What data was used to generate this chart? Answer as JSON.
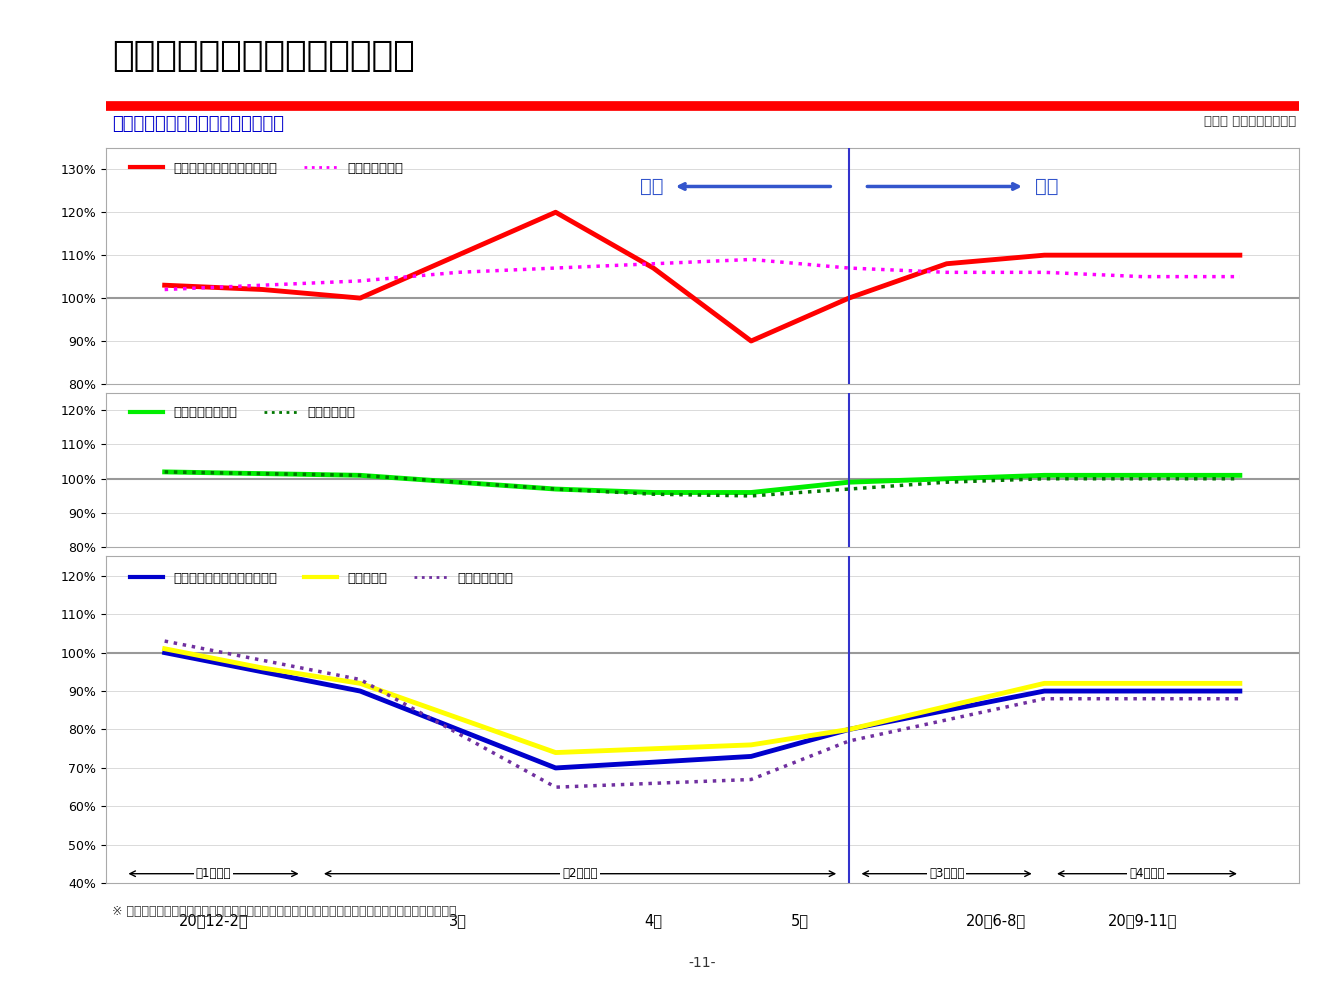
{
  "title": "市場の動きとの比較（前年比）",
  "subtitle": "当社事業別売上高伸長率と市場動向",
  "note": "（注） 数値は近似値です",
  "footer": "※ 市場実績は日本フードサービス協会およびチェーンストアー協会資料、市場予想は当社見込みより",
  "page": "-11-",
  "x_labels": [
    "20年12-2月",
    "3月",
    "4月",
    "5月",
    "20年6-8月",
    "20年9-11月"
  ],
  "vertical_line_x": 3.5,
  "chart1": {
    "ylim": [
      80,
      135
    ],
    "yticks": [
      80,
      90,
      100,
      110,
      120,
      130
    ],
    "series": [
      {
        "label": "当社調理・調味料（家庭用）",
        "color": "#ff0000",
        "linestyle": "solid",
        "linewidth": 3.5
      },
      {
        "label": "スーパー食料品",
        "color": "#ff00ff",
        "linestyle": "dotted",
        "linewidth": 2.5
      }
    ],
    "x_dense": [
      0,
      0.5,
      1,
      1.5,
      2,
      2.5,
      3,
      3.5,
      4,
      4.5,
      5,
      5.5
    ],
    "series_dense": [
      [
        103,
        102,
        100,
        110,
        120,
        107,
        90,
        100,
        108,
        110,
        110,
        110
      ],
      [
        102,
        103,
        104,
        106,
        107,
        108,
        109,
        107,
        106,
        106,
        105,
        105
      ]
    ]
  },
  "chart2": {
    "ylim": [
      80,
      125
    ],
    "yticks": [
      80,
      90,
      100,
      110,
      120
    ],
    "series": [
      {
        "label": "当社サラダ・想菜",
        "color": "#00ee00",
        "linestyle": "solid",
        "linewidth": 3.5
      },
      {
        "label": "スーパー想菜",
        "color": "#007700",
        "linestyle": "dotted",
        "linewidth": 2.5
      }
    ],
    "x_dense": [
      0,
      0.5,
      1,
      1.5,
      2,
      2.5,
      3,
      3.5,
      4,
      4.5,
      5,
      5.5
    ],
    "series_dense": [
      [
        102,
        101.5,
        101,
        99,
        97,
        96,
        96,
        99,
        100,
        101,
        101,
        101
      ],
      [
        102,
        101.5,
        101,
        99,
        97,
        95.5,
        95,
        97,
        99,
        100,
        100,
        100
      ]
    ]
  },
  "chart3": {
    "ylim": [
      40,
      125
    ],
    "yticks": [
      40,
      50,
      60,
      70,
      80,
      90,
      100,
      110,
      120
    ],
    "series": [
      {
        "label": "当社調理・調味料（業務用）",
        "color": "#0000cc",
        "linestyle": "solid",
        "linewidth": 3.5
      },
      {
        "label": "当社タマゴ",
        "color": "#ffff00",
        "linestyle": "solid",
        "linewidth": 3.5
      },
      {
        "label": "フードサービス",
        "color": "#7030a0",
        "linestyle": "dotted",
        "linewidth": 2.5
      }
    ],
    "x_dense": [
      0,
      0.5,
      1,
      1.5,
      2,
      2.5,
      3,
      3.5,
      4,
      4.5,
      5,
      5.5
    ],
    "series_dense": [
      [
        100,
        95,
        90,
        80,
        70,
        71.5,
        73,
        80,
        85,
        90,
        90,
        90
      ],
      [
        101,
        96,
        92,
        83,
        74,
        75,
        76,
        80,
        86,
        92,
        92,
        92
      ],
      [
        103,
        98,
        93,
        79,
        65,
        66,
        67,
        77,
        82.5,
        88,
        88,
        88
      ]
    ]
  },
  "quarter_data": [
    {
      "label": "第1四半期",
      "xmin": -0.25,
      "xmax": 0.75
    },
    {
      "label": "第2四半期",
      "xmin": 0.75,
      "xmax": 3.5
    },
    {
      "label": "第3四半期",
      "xmin": 3.5,
      "xmax": 4.5
    },
    {
      "label": "第4四半期",
      "xmin": 4.5,
      "xmax": 5.55
    }
  ],
  "tick_positions": [
    0.25,
    1.5,
    2.5,
    3.25,
    4.25,
    5.0
  ],
  "bg_color": "#ffffff",
  "plot_bg_color": "#ffffff",
  "grid_color": "#cccccc",
  "vline_color": "#3333cc",
  "hline_color": "#999999",
  "title_color": "#000000",
  "subtitle_color": "#0000cc",
  "arrow_color": "#3355cc"
}
